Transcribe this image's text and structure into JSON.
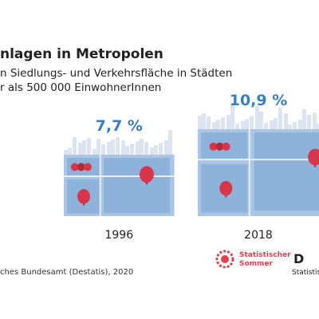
{
  "chart_data": {
    "type": "pictogram",
    "title": "nlagen in Metropolen",
    "subtitle": [
      "n Siedlungs- und Verkehrsfläche in Städten",
      "r als 500 000 EinwohnerInnen"
    ],
    "categories": [
      "1996",
      "2018"
    ],
    "values": [
      7.7,
      10.9
    ],
    "value_labels": [
      "7,7 %",
      "10,9 %"
    ],
    "color": "#a9c6e6",
    "source": "ches Bundesamt (Destatis), 2020",
    "logos": [
      "Statistischer",
      "Sommer",
      "D",
      "Statistisc"
    ]
  }
}
